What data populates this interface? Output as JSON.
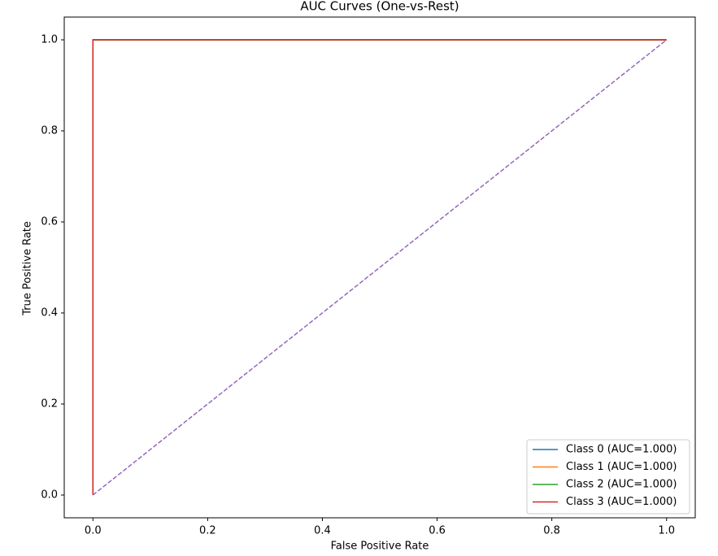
{
  "chart_data": {
    "type": "line",
    "title": "AUC Curves (One-vs-Rest)",
    "xlabel": "False Positive Rate",
    "ylabel": "True Positive Rate",
    "xlim": [
      -0.05,
      1.05
    ],
    "ylim": [
      -0.05,
      1.05
    ],
    "xticks": [
      {
        "value": 0,
        "label": "0.0"
      },
      0.2,
      0.4,
      0.6,
      0.8,
      {
        "value": 1,
        "label": "1.0"
      }
    ],
    "yticks": [
      {
        "value": 0,
        "label": "0.0"
      },
      0.2,
      0.4,
      0.6,
      0.8,
      {
        "value": 1,
        "label": "1.0"
      }
    ],
    "legend": "lower right",
    "series": [
      {
        "name": "Class 0 (AUC=1.000)",
        "color": "#1f77b4",
        "x": [
          0,
          0,
          1
        ],
        "values": [
          0,
          1,
          1
        ]
      },
      {
        "name": "Class 1 (AUC=1.000)",
        "color": "#ff7f0e",
        "x": [
          0,
          0,
          1
        ],
        "values": [
          0,
          1,
          1
        ]
      },
      {
        "name": "Class 2 (AUC=1.000)",
        "color": "#2ca02c",
        "x": [
          0,
          0,
          1
        ],
        "values": [
          0,
          1,
          1
        ]
      },
      {
        "name": "Class 3 (AUC=1.000)",
        "color": "#d62728",
        "x": [
          0,
          0,
          1
        ],
        "values": [
          0,
          1,
          1
        ]
      }
    ],
    "reference_line": {
      "color": "#9467bd",
      "dashed": true,
      "x": [
        0,
        1
      ],
      "values": [
        0,
        1
      ]
    }
  }
}
